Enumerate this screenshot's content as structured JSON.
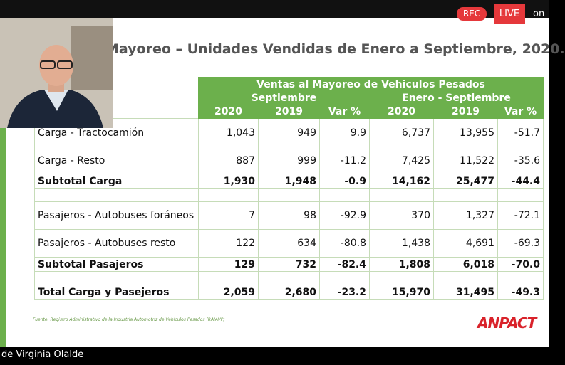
{
  "topbar": {
    "rec": "REC",
    "live": "LIVE",
    "on": "on"
  },
  "slide": {
    "title": "Mayoreo – Unidades Vendidas de Enero a Septiembre, 2020.",
    "table": {
      "caption": "Ventas al Mayoreo de Vehiculos Pesados",
      "groups": [
        "Septiembre",
        "Enero - Septiembre"
      ],
      "columns": [
        "2020",
        "2019",
        "Var %",
        "2020",
        "2019",
        "Var %"
      ],
      "rows": [
        {
          "label": "Carga - Tractocamión",
          "values": [
            "1,043",
            "949",
            "9.9",
            "6,737",
            "13,955",
            "-51.7"
          ]
        },
        {
          "label": "Carga - Resto",
          "values": [
            "887",
            "999",
            "-11.2",
            "7,425",
            "11,522",
            "-35.6"
          ]
        },
        {
          "label": "Subtotal Carga",
          "values": [
            "1,930",
            "1,948",
            "-0.9",
            "14,162",
            "25,477",
            "-44.4"
          ]
        },
        {
          "label": "Pasajeros - Autobuses foráneos",
          "values": [
            "7",
            "98",
            "-92.9",
            "370",
            "1,327",
            "-72.1"
          ]
        },
        {
          "label": "Pasajeros - Autobuses resto",
          "values": [
            "122",
            "634",
            "-80.8",
            "1,438",
            "4,691",
            "-69.3"
          ]
        },
        {
          "label": "Subtotal Pasajeros",
          "values": [
            "129",
            "732",
            "-82.4",
            "1,808",
            "6,018",
            "-70.0"
          ]
        },
        {
          "label": "Total Carga y Pasejeros",
          "values": [
            "2,059",
            "2,680",
            "-23.2",
            "15,970",
            "31,495",
            "-49.3"
          ]
        }
      ]
    },
    "source": "Fuente: Registro Administrativo de la Industria Automotriz de Vehículos Pesados (RAIAVP)",
    "logo": "ANPACT"
  },
  "participant": {
    "name": "de Virginia Olalde"
  }
}
